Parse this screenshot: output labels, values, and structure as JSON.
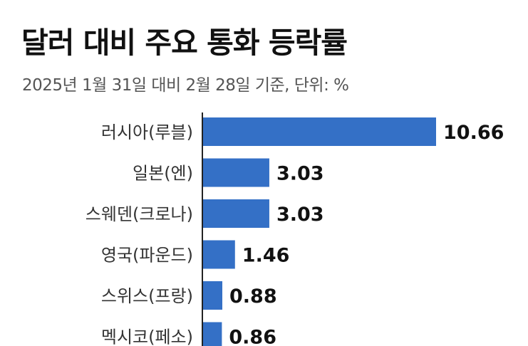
{
  "chart_data": {
    "type": "bar",
    "orientation": "horizontal",
    "title": "달러 대비 주요 통화 등락률",
    "subtitle": "2025년 1월 31일 대비 2월 28일 기준, 단위: %",
    "categories": [
      "러시아(루블)",
      "일본(엔)",
      "스웨덴(크로나)",
      "영국(파운드)",
      "스위스(프랑)",
      "멕시코(페소)"
    ],
    "values": [
      10.66,
      3.03,
      3.03,
      1.46,
      0.88,
      0.86
    ],
    "value_labels": [
      "10.66",
      "3.03",
      "3.03",
      "1.46",
      "0.88",
      "0.86"
    ],
    "xlim": [
      0,
      10.66
    ],
    "grid": false,
    "colors": {
      "bar": "#3470c6",
      "axis": "#222222"
    }
  }
}
